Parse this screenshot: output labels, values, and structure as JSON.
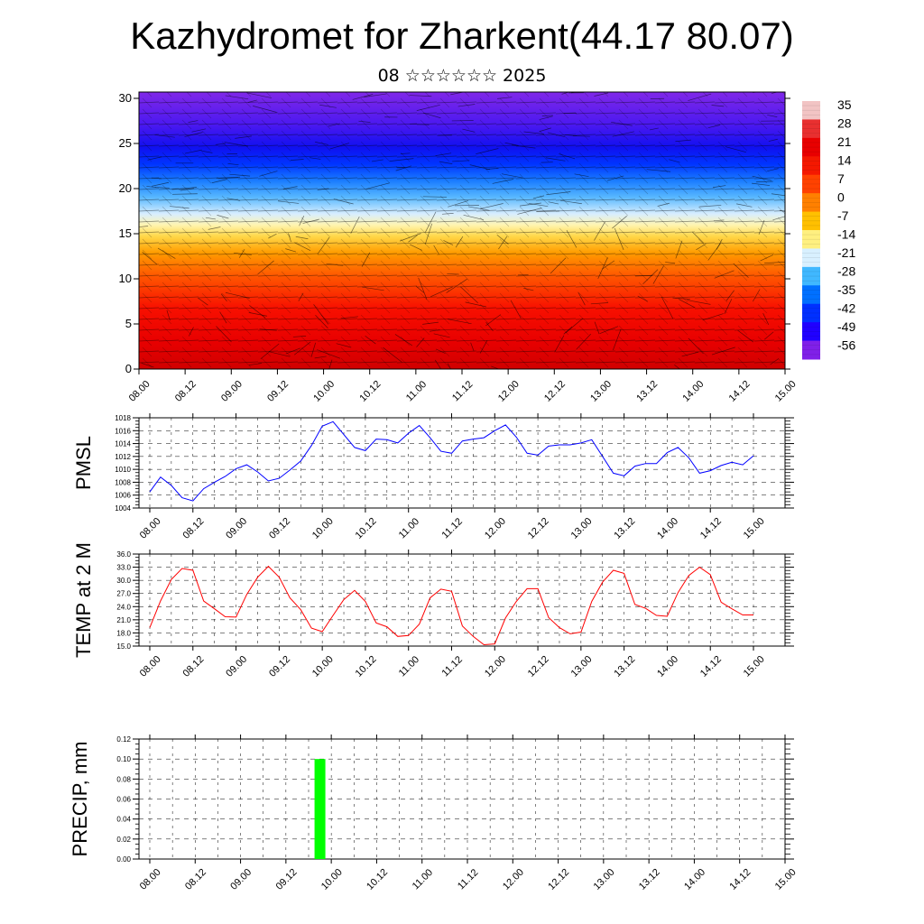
{
  "page": {
    "title": "Kazhydromet for Zharkent(44.17 80.07)",
    "subtitle": "08 ☆☆☆☆☆☆ 2025"
  },
  "time_labels": [
    "08.00",
    "08.12",
    "09.00",
    "09.12",
    "10.00",
    "10.12",
    "11.00",
    "11.12",
    "12.00",
    "12.12",
    "13.00",
    "13.12",
    "14.00",
    "14.12",
    "15.00"
  ],
  "colors": {
    "pmsl_line": "#0000ff",
    "temp_line": "#ff0000",
    "precip_bar": "#00ff00",
    "grid": "#000000"
  },
  "chart_data": [
    {
      "type": "heatmap",
      "title": "",
      "ylim": [
        0,
        30
      ],
      "yticks": [
        0,
        5,
        10,
        15,
        20,
        25,
        30
      ],
      "xticks": [
        "08.00",
        "08.12",
        "09.00",
        "09.12",
        "10.00",
        "10.12",
        "11.00",
        "11.12",
        "12.00",
        "12.12",
        "13.00",
        "13.12",
        "14.00",
        "14.12",
        "15.00"
      ],
      "colorbar": {
        "labels": [
          "35",
          "28",
          "21",
          "14",
          "7",
          "0",
          "-7",
          "-14",
          "-21",
          "-28",
          "-35",
          "-42",
          "-49",
          "-56"
        ],
        "colors": [
          "#f2c4c4",
          "#e83030",
          "#e80000",
          "#f41800",
          "#ff4200",
          "#ff8000",
          "#ffc000",
          "#fff080",
          "#d8f0ff",
          "#40b8ff",
          "#0070ff",
          "#0030ff",
          "#2000ff",
          "#8020e8"
        ]
      }
    },
    {
      "type": "line",
      "ylabel": "PMSL",
      "ylim": [
        1004,
        1018
      ],
      "yticks": [
        "1004",
        "1006",
        "1008",
        "1010",
        "1012",
        "1014",
        "1016",
        "1018"
      ],
      "xticks": [
        "08.00",
        "08.12",
        "09.00",
        "09.12",
        "10.00",
        "10.12",
        "11.00",
        "11.12",
        "12.00",
        "12.12",
        "13.00",
        "13.12",
        "14.00",
        "14.12",
        "15.00"
      ],
      "x_hours": [
        0,
        3,
        6,
        9,
        12,
        15,
        18,
        21,
        24,
        27,
        30,
        33,
        36,
        39,
        42,
        45,
        48,
        51,
        54,
        57,
        60,
        63,
        66,
        69,
        72,
        75,
        78,
        81,
        84,
        87,
        90,
        93,
        96,
        99,
        102,
        105,
        108,
        111,
        114,
        117,
        120,
        123,
        126,
        129,
        132,
        135,
        138,
        141,
        144,
        147,
        150,
        153,
        156,
        159,
        162,
        165,
        168
      ],
      "values": [
        1006.5,
        1008.8,
        1007.5,
        1005.6,
        1005.1,
        1007,
        1008,
        1008.9,
        1010.1,
        1010.7,
        1009.6,
        1008.2,
        1008.6,
        1009.9,
        1011.3,
        1013.7,
        1016.7,
        1017.4,
        1015.4,
        1013.4,
        1012.9,
        1014.7,
        1014.6,
        1014.1,
        1015.6,
        1016.8,
        1014.9,
        1012.8,
        1012.5,
        1014.4,
        1014.7,
        1014.9,
        1016,
        1016.9,
        1015,
        1012.5,
        1012.2,
        1013.6,
        1013.8,
        1013.8,
        1014.1,
        1014.6,
        1012,
        1009.4,
        1009,
        1010.5,
        1010.9,
        1010.9,
        1012.6,
        1013.4,
        1011.8,
        1009.4,
        1009.8,
        1010.6,
        1011.1,
        1010.7,
        1012.1
      ]
    },
    {
      "type": "line",
      "ylabel": "TEMP at 2 M",
      "ylim": [
        15,
        36
      ],
      "yticks": [
        "15.0",
        "18.0",
        "21.0",
        "24.0",
        "27.0",
        "30.0",
        "33.0",
        "36.0"
      ],
      "xticks": [
        "08.00",
        "08.12",
        "09.00",
        "09.12",
        "10.00",
        "10.12",
        "11.00",
        "11.12",
        "12.00",
        "12.12",
        "13.00",
        "13.12",
        "14.00",
        "14.12",
        "15.00"
      ],
      "x_hours": [
        0,
        3,
        6,
        9,
        12,
        15,
        18,
        21,
        24,
        27,
        30,
        33,
        36,
        39,
        42,
        45,
        48,
        51,
        54,
        57,
        60,
        63,
        66,
        69,
        72,
        75,
        78,
        81,
        84,
        87,
        90,
        93,
        96,
        99,
        102,
        105,
        108,
        111,
        114,
        117,
        120,
        123,
        126,
        129,
        132,
        135,
        138,
        141,
        144,
        147,
        150,
        153,
        156,
        159,
        162,
        165,
        168
      ],
      "values": [
        19.2,
        25.3,
        30.2,
        32.7,
        32.3,
        25.3,
        23.5,
        21.7,
        21.6,
        26.8,
        30.7,
        33.2,
        30.7,
        26,
        23.3,
        19.1,
        18.3,
        22,
        25.6,
        27.7,
        25.2,
        20.3,
        19.4,
        17.2,
        17.4,
        20,
        26,
        28,
        27.5,
        19.6,
        17.2,
        15.3,
        15.5,
        21.4,
        25.2,
        28.1,
        28.1,
        21.5,
        19.2,
        17.8,
        18.2,
        25.2,
        29.6,
        32.3,
        31.6,
        24.5,
        23.6,
        22,
        21.8,
        27.2,
        31.1,
        33,
        31.3,
        25,
        23.5,
        22.1,
        22.1
      ]
    },
    {
      "type": "bar",
      "ylabel": "PRECIP, mm",
      "ylim": [
        0,
        0.12
      ],
      "yticks": [
        "0.00",
        "0.02",
        "0.04",
        "0.06",
        "0.08",
        "0.10",
        "0.12"
      ],
      "xticks": [
        "08.00",
        "08.12",
        "09.00",
        "09.12",
        "10.00",
        "10.12",
        "11.00",
        "11.12",
        "12.00",
        "12.12",
        "13.00",
        "13.12",
        "14.00",
        "14.12",
        "15.00"
      ],
      "bars": [
        {
          "x_hours": 45,
          "value": 0.1
        }
      ]
    }
  ]
}
